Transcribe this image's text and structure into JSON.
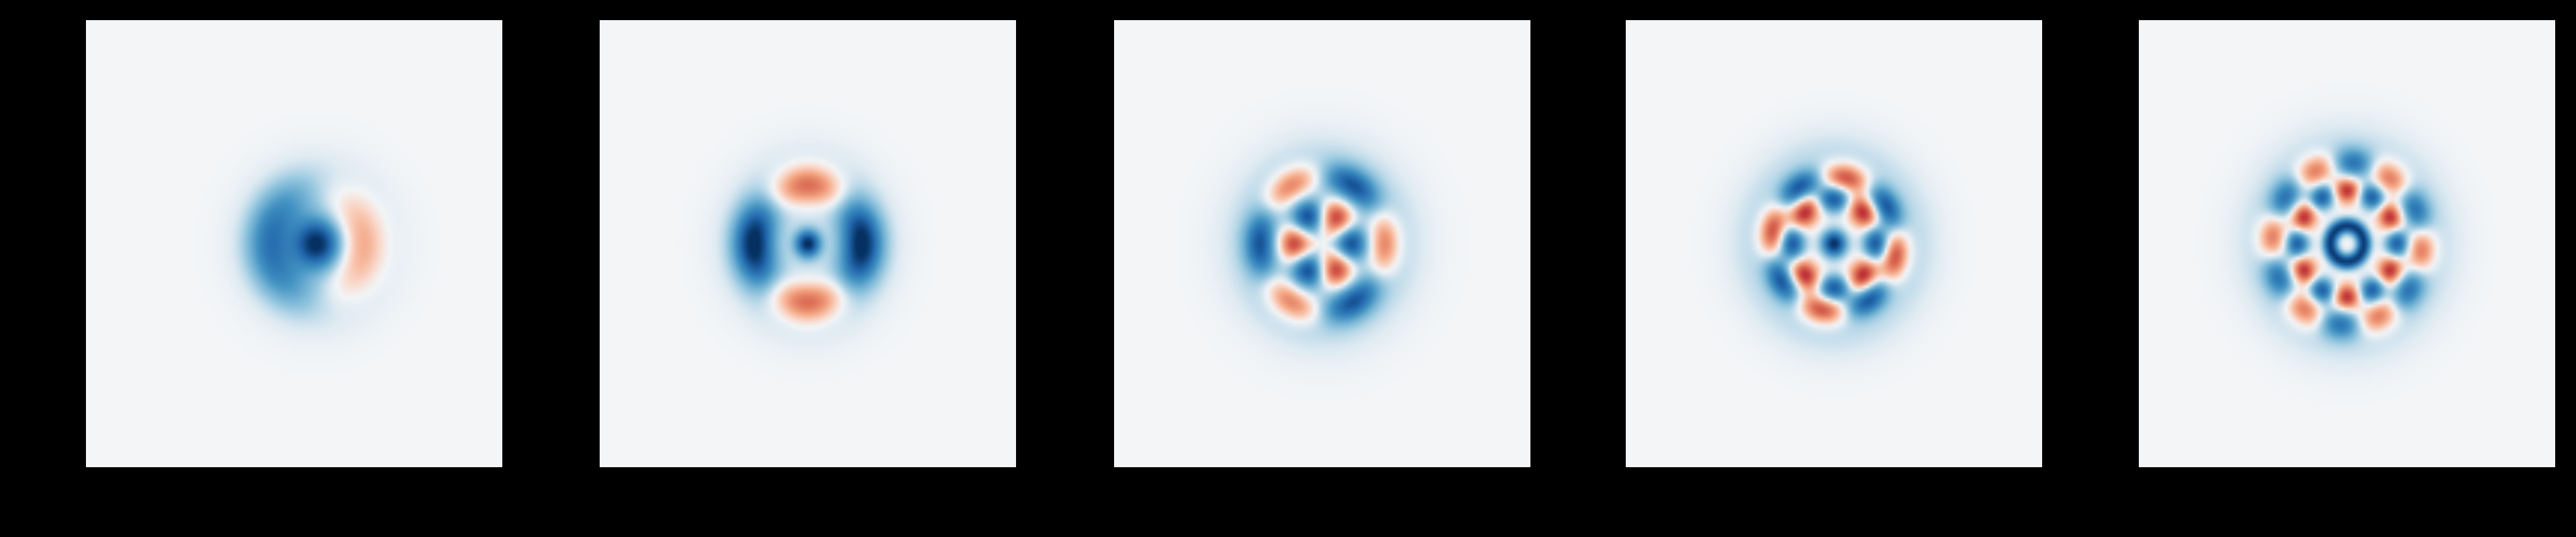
{
  "figure": {
    "background": "#000000",
    "panel_background": "#f3f5f7",
    "colormap": "RdBu",
    "colors": {
      "positive": "#d6604d",
      "negative": "#08306b",
      "neutral": "#f3f5f7"
    }
  },
  "chart_data": [
    {
      "type": "heatmap",
      "title": "",
      "xlabel": "",
      "ylabel": "",
      "x_range": [
        -1,
        1
      ],
      "y_range": [
        -1,
        1
      ],
      "grid": false,
      "components": [
        {
          "m": 1,
          "amplitude": 0.48,
          "radius": 0.22,
          "width": 0.11,
          "phase": 0
        },
        {
          "m": 0,
          "amplitude": -1.0,
          "radius": 0.0,
          "width": 0.11,
          "phase": 0
        },
        {
          "m": 0,
          "amplitude": -0.2,
          "radius": 0.23,
          "width": 0.16,
          "phase": 0
        }
      ],
      "shift": [
        0.11,
        0.0
      ]
    },
    {
      "type": "heatmap",
      "title": "",
      "xlabel": "",
      "ylabel": "",
      "x_range": [
        -1,
        1
      ],
      "y_range": [
        -1,
        1
      ],
      "grid": false,
      "components": [
        {
          "m": 2,
          "amplitude": -0.78,
          "radius": 0.26,
          "width": 0.09,
          "phase": 0
        },
        {
          "m": 0,
          "amplitude": -0.28,
          "radius": 0.25,
          "width": 0.16,
          "phase": 0
        },
        {
          "m": 0,
          "amplitude": -1.0,
          "radius": 0.0,
          "width": 0.06,
          "phase": 0
        }
      ],
      "shift": [
        0.0,
        0.0
      ]
    },
    {
      "type": "heatmap",
      "title": "",
      "xlabel": "",
      "ylabel": "",
      "x_range": [
        -1,
        1
      ],
      "y_range": [
        -1,
        1
      ],
      "grid": false,
      "components": [
        {
          "m": 3,
          "amplitude": -0.72,
          "radius": 0.14,
          "width": 0.07,
          "phase": 0
        },
        {
          "m": 3,
          "amplitude": 0.62,
          "radius": 0.3,
          "width": 0.07,
          "phase": 0
        },
        {
          "m": 0,
          "amplitude": -0.22,
          "radius": 0.3,
          "width": 0.18,
          "phase": 0
        }
      ],
      "shift": [
        0.0,
        0.0
      ]
    },
    {
      "type": "heatmap",
      "title": "",
      "xlabel": "",
      "ylabel": "",
      "x_range": [
        -1,
        1
      ],
      "y_range": [
        -1,
        1
      ],
      "grid": false,
      "components": [
        {
          "m": 0,
          "amplitude": -1.0,
          "radius": 0.0,
          "width": 0.06,
          "phase": 0
        },
        {
          "m": 4,
          "amplitude": -0.78,
          "radius": 0.2,
          "width": 0.06,
          "phase": 0
        },
        {
          "m": 4,
          "amplitude": 0.72,
          "radius": 0.3,
          "width": 0.06,
          "phase": 0.785398
        },
        {
          "m": 0,
          "amplitude": -0.15,
          "radius": 0.38,
          "width": 0.14,
          "phase": 0
        }
      ],
      "shift": [
        0.0,
        0.0
      ]
    },
    {
      "type": "heatmap",
      "title": "",
      "xlabel": "",
      "ylabel": "",
      "x_range": [
        -1,
        1
      ],
      "y_range": [
        -1,
        1
      ],
      "grid": false,
      "components": [
        {
          "m": 0,
          "amplitude": -0.95,
          "radius": 0.08,
          "width": 0.035,
          "phase": 0
        },
        {
          "m": 6,
          "amplitude": -0.75,
          "radius": 0.24,
          "width": 0.055,
          "phase": 0
        },
        {
          "m": 6,
          "amplitude": 0.55,
          "radius": 0.36,
          "width": 0.065,
          "phase": 0.523599
        },
        {
          "m": 0,
          "amplitude": -0.14,
          "radius": 0.42,
          "width": 0.14,
          "phase": 0
        }
      ],
      "shift": [
        0.0,
        0.0
      ]
    }
  ]
}
